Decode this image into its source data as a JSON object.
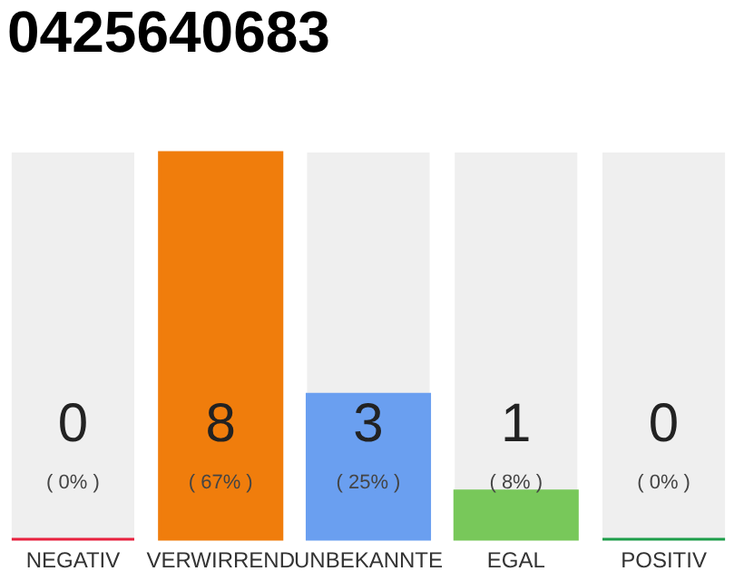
{
  "chart_data": {
    "type": "bar",
    "title": "0425640683",
    "categories": [
      "NEGATIV",
      "VERWIRREND",
      "UNBEKANNTE",
      "EGAL",
      "POSITIV"
    ],
    "values": [
      0,
      8,
      3,
      1,
      0
    ],
    "colors": [
      "#e8213f",
      "#f07d0c",
      "#6a9ff0",
      "#78c85a",
      "#1e9e4a"
    ],
    "ylim": [
      0,
      8
    ],
    "tick_labels": "x",
    "data_labels": true,
    "grid": false,
    "annotations": [
      "( 0% )",
      "( 67% )",
      "( 25% )",
      "( 8% )",
      "( 0% )"
    ]
  }
}
